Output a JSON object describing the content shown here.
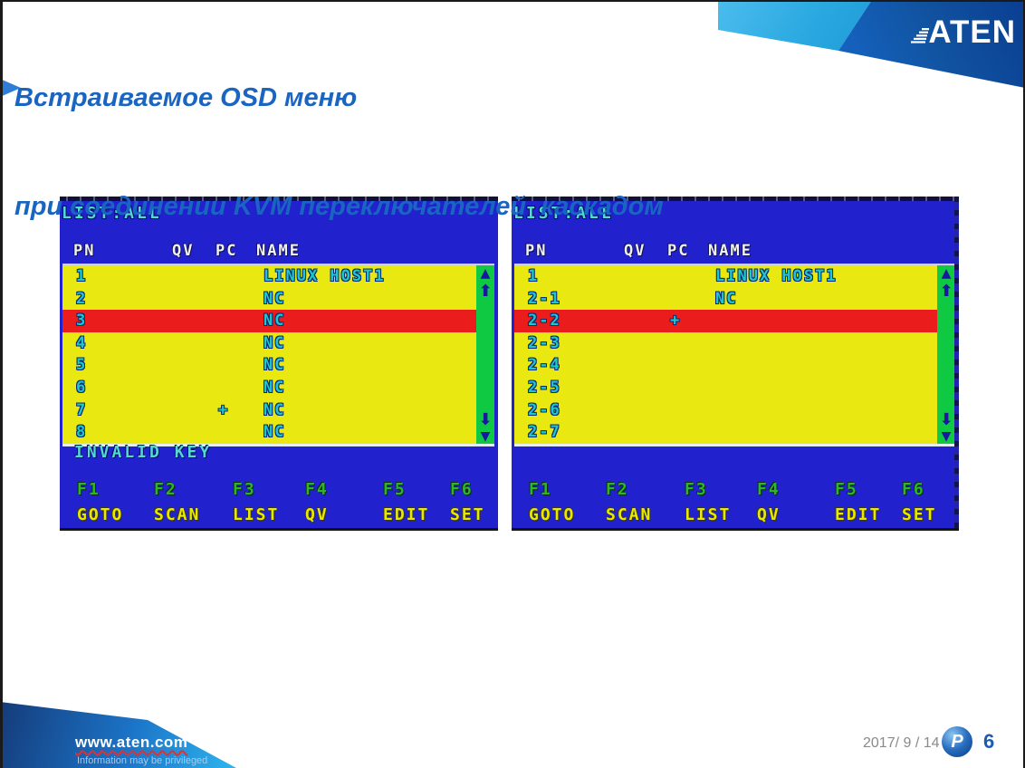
{
  "slide": {
    "title_line1": "Встраиваемое OSD меню",
    "title_line2": "при соединении KVM переключателей  каскадом",
    "logo": "ATEN",
    "footer": {
      "url": "www.aten.com",
      "privileged": "Information may be privileged",
      "date": "2017/ 9 / 14",
      "page": "6",
      "badge": "P"
    }
  },
  "icons": {
    "up_triangle": "▲",
    "up_arrow": "⬆",
    "down_arrow": "⬇",
    "down_triangle": "▼"
  },
  "osd_left": {
    "list_label": "LIST:ALL",
    "headers": [
      "PN",
      "QV",
      "PC",
      "NAME"
    ],
    "rows": [
      {
        "pn": "1",
        "name": "LINUX HOST1"
      },
      {
        "pn": "2",
        "name": "NC"
      },
      {
        "pn": "3",
        "name": "NC",
        "selected": true
      },
      {
        "pn": "4",
        "name": "NC"
      },
      {
        "pn": "5",
        "name": "NC"
      },
      {
        "pn": "6",
        "name": "NC"
      },
      {
        "pn": "7",
        "pc": "+",
        "name": "NC"
      },
      {
        "pn": "8",
        "name": "NC"
      }
    ],
    "status": "INVALID KEY",
    "fkeys": [
      {
        "key": "F1",
        "label": "GOTO"
      },
      {
        "key": "F2",
        "label": "SCAN"
      },
      {
        "key": "F3",
        "label": "LIST"
      },
      {
        "key": "F4",
        "label": "QV"
      },
      {
        "key": "F5",
        "label": "EDIT"
      },
      {
        "key": "F6",
        "label": "SET"
      }
    ]
  },
  "osd_right": {
    "list_label": "LIST:ALL",
    "headers": [
      "PN",
      "QV",
      "PC",
      "NAME"
    ],
    "rows": [
      {
        "pn": "1",
        "name": "LINUX HOST1"
      },
      {
        "pn": "2-1",
        "name": "NC"
      },
      {
        "pn": "2-2",
        "pc": "+",
        "selected": true
      },
      {
        "pn": "2-3"
      },
      {
        "pn": "2-4"
      },
      {
        "pn": "2-5"
      },
      {
        "pn": "2-6"
      },
      {
        "pn": "2-7"
      }
    ],
    "status": "",
    "fkeys": [
      {
        "key": "F1",
        "label": "GOTO"
      },
      {
        "key": "F2",
        "label": "SCAN"
      },
      {
        "key": "F3",
        "label": "LIST"
      },
      {
        "key": "F4",
        "label": "QV"
      },
      {
        "key": "F5",
        "label": "EDIT"
      },
      {
        "key": "F6",
        "label": "SET"
      }
    ]
  },
  "colors": {
    "title_blue": "#1a64c2",
    "osd_background": "#2121cd",
    "osd_list_yellow": "#e9e911",
    "osd_selected_red": "#ea1c1c",
    "osd_scrollbar_green": "#0fc942",
    "osd_cyan_text": "#22c6c6",
    "osd_header_white": "#f0f0f0",
    "fkey_green": "#2eb42e",
    "flabel_yellow": "#e8e800",
    "banner_dark_blue": "#0a3e92",
    "banner_light_blue": "#29a8e0"
  }
}
